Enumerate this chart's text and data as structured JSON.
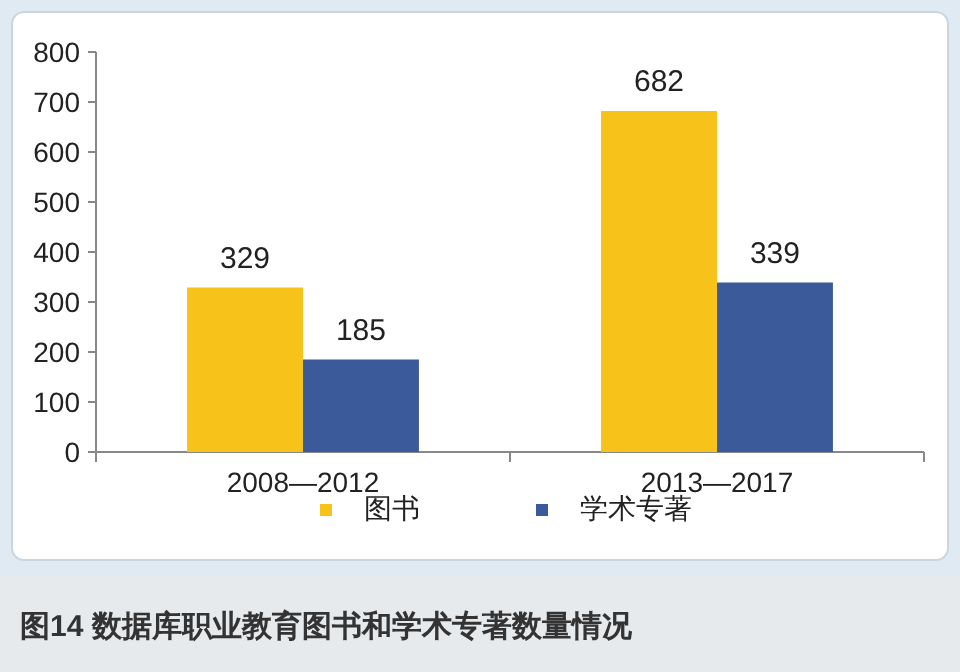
{
  "chart_data": {
    "type": "bar",
    "title": "图14 数据库职业教育图书和学术专著数量情况",
    "categories": [
      "2008—2012",
      "2013—2017"
    ],
    "series": [
      {
        "name": "图书",
        "color": "#f7c21a",
        "values": [
          329,
          682
        ]
      },
      {
        "name": "学术专著",
        "color": "#3b5a9a",
        "values": [
          185,
          339
        ]
      }
    ],
    "ylim": [
      0,
      800
    ],
    "yticks": [
      0,
      100,
      200,
      300,
      400,
      500,
      600,
      700,
      800
    ],
    "data_labels": true,
    "legend": "bottom",
    "grid": false
  }
}
